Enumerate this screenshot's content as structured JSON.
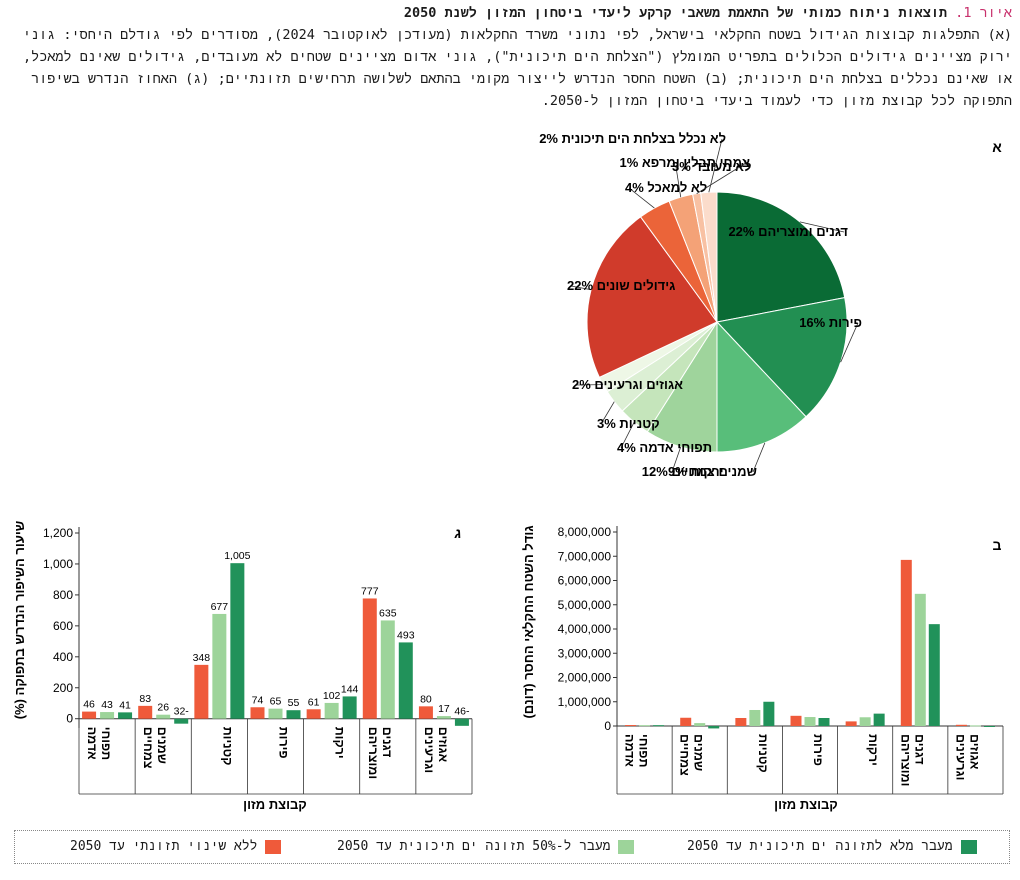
{
  "caption": {
    "fig_label": "איור 1.",
    "title": "תוצאות ניתוח כמותי של התאמת משאבי קרקע ליעדי ביטחון המזון לשנת 2050",
    "body": "(א) התפלגות קבוצות הגידול בשטח החקלאי בישראל, לפי נתוני משרד החקלאות (מעודכן לאוקטובר 2024), מסודרים לפי גודלם היחסי: גוני ירוק מציינים גידולים הכלולים בתפריט המומלץ (\"הצלחת הים תיכונית\"), גוני אדום מציינים שטחים לא מעובדים, גידולים שאינם למאכל, או שאינם נכללים בצלחת הים תיכונית; (ב) השטח החסר הנדרש לייצור מקומי בהתאם לשלושה תרחישים תזונתיים; (ג) האחוז הנדרש בשיפור התפוקה לכל קבוצת מזון כדי לעמוד ביעדי ביטחון המזון ל-2050."
  },
  "panel_labels": {
    "a": "א",
    "b": "ב",
    "c": "ג"
  },
  "colors": {
    "scenario_none": "#ef5a3a",
    "scenario_half": "#9dd49a",
    "scenario_full": "#21925a"
  },
  "legend": [
    {
      "label": "ללא שינוי תזונתי עד 2050",
      "color": "#ef5a3a"
    },
    {
      "label": "מעבר ל-50% תזונה ים תיכונית עד 2050",
      "color": "#9dd49a"
    },
    {
      "label": "מעבר מלא לתזונה ים תיכונית עד 2050",
      "color": "#21925a"
    }
  ],
  "chart_data": [
    {
      "type": "pie",
      "panel": "א",
      "slices": [
        {
          "label": "דגנים ומוצריהם",
          "value": 22,
          "display": "22%",
          "color": "#0a6b35"
        },
        {
          "label": "פירות",
          "value": 16,
          "display": "16%",
          "color": "#228f52"
        },
        {
          "label": "שמנים צמחיים",
          "value": 12,
          "display": "12%",
          "color": "#58be7a"
        },
        {
          "label": "ירקות",
          "value": 9,
          "display": "9%",
          "color": "#9fd49c"
        },
        {
          "label": "תפוחי אדמה",
          "value": 4,
          "display": "4%",
          "color": "#c5e5bb"
        },
        {
          "label": "קטניות",
          "value": 3,
          "display": "3%",
          "color": "#dcefd4"
        },
        {
          "label": "אגוזים וגרעינים",
          "value": 2,
          "display": "2%",
          "color": "#eef7e6"
        },
        {
          "label": "גידולים שונים",
          "value": 22,
          "display": "22%",
          "color": "#d03b2b"
        },
        {
          "label": "לא למאכל",
          "value": 4,
          "display": "4%",
          "color": "#eb6439"
        },
        {
          "label": "לא מעובד",
          "value": 3,
          "display": "3%",
          "color": "#f4a277"
        },
        {
          "label": "צמחי תבלין ומרפא",
          "value": 1,
          "display": "1%",
          "color": "#f8c1a3"
        },
        {
          "label": "לא נכלל בצלחת הים תיכונית",
          "value": 2,
          "display": "2%",
          "color": "#fbdccb"
        }
      ]
    },
    {
      "type": "bar",
      "panel": "ב",
      "ylabel": "גודל השטח החקלאי החסר (דונם)",
      "xlabel": "קבוצת מזון",
      "ylim": [
        0,
        8000000
      ],
      "yticks": [
        "0",
        "1,000,000",
        "2,000,000",
        "3,000,000",
        "4,000,000",
        "5,000,000",
        "6,000,000",
        "7,000,000",
        "8,000,000"
      ],
      "categories": [
        "תפוחי אדמה",
        "שמנים צמחיים",
        "קטניות",
        "פירות",
        "ירקות",
        "דגנים ומוצריהם",
        "אגוזים וגרעינים"
      ],
      "series": [
        {
          "name": "ללא שינוי תזונתי עד 2050",
          "values": [
            40000,
            340000,
            330000,
            420000,
            190000,
            6850000,
            50000
          ]
        },
        {
          "name": "מעבר ל-50% תזונה ים תיכונית עד 2050",
          "values": [
            35000,
            120000,
            660000,
            370000,
            360000,
            5450000,
            25000
          ]
        },
        {
          "name": "מעבר מלא לתזונה ים תיכונית עד 2050",
          "values": [
            35000,
            -100000,
            1000000,
            330000,
            510000,
            4200000,
            -10000
          ]
        }
      ]
    },
    {
      "type": "bar",
      "panel": "ג",
      "ylabel": "שיעור השיפור הנדרש בתפוקה (%)",
      "xlabel": "קבוצת מזון",
      "ylim": [
        -60,
        1200
      ],
      "yticks": [
        "0",
        "200",
        "400",
        "600",
        "800",
        "1,000",
        "1,200"
      ],
      "categories": [
        "תפוחי אדמה",
        "שמנים צמחיים",
        "קטניות",
        "פירות",
        "ירקות",
        "דגנים ומוצריהם",
        "אגוזים וגרעינים"
      ],
      "series": [
        {
          "name": "ללא שינוי תזונתי עד 2050",
          "values": [
            46,
            83,
            348,
            74,
            61,
            777,
            80
          ],
          "labels": [
            "46",
            "83",
            "348",
            "74",
            "61",
            "777",
            "80"
          ]
        },
        {
          "name": "מעבר ל-50% תזונה ים תיכונית עד 2050",
          "values": [
            43,
            26,
            677,
            65,
            102,
            635,
            17
          ],
          "labels": [
            "43",
            "26",
            "677",
            "65",
            "102",
            "635",
            "17"
          ]
        },
        {
          "name": "מעבר מלא לתזונה ים תיכונית עד 2050",
          "values": [
            41,
            -32,
            1005,
            55,
            144,
            493,
            -46
          ],
          "labels": [
            "41",
            "32-",
            "1,005",
            "55",
            "144",
            "493",
            "46-"
          ]
        }
      ]
    }
  ]
}
